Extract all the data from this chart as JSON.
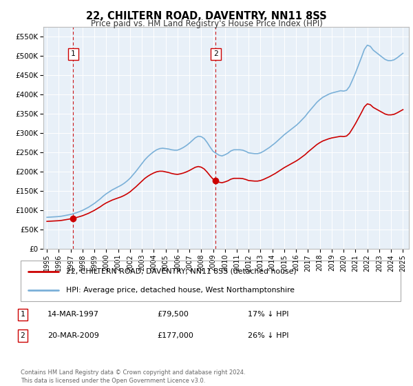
{
  "title": "22, CHILTERN ROAD, DAVENTRY, NN11 8SS",
  "subtitle": "Price paid vs. HM Land Registry's House Price Index (HPI)",
  "background_color": "#ffffff",
  "plot_bg_color": "#e8f0f8",
  "hpi_color": "#7ab0d8",
  "price_color": "#cc0000",
  "marker_color": "#cc0000",
  "dashed_line_color": "#cc0000",
  "ylim": [
    0,
    575000
  ],
  "yticks": [
    0,
    50000,
    100000,
    150000,
    200000,
    250000,
    300000,
    350000,
    400000,
    450000,
    500000,
    550000
  ],
  "ytick_labels": [
    "£0",
    "£50K",
    "£100K",
    "£150K",
    "£200K",
    "£250K",
    "£300K",
    "£350K",
    "£400K",
    "£450K",
    "£500K",
    "£550K"
  ],
  "xlim_start": 1994.7,
  "xlim_end": 2025.5,
  "xtick_years": [
    1995,
    1996,
    1997,
    1998,
    1999,
    2000,
    2001,
    2002,
    2003,
    2004,
    2005,
    2006,
    2007,
    2008,
    2009,
    2010,
    2011,
    2012,
    2013,
    2014,
    2015,
    2016,
    2017,
    2018,
    2019,
    2020,
    2021,
    2022,
    2023,
    2024,
    2025
  ],
  "sale1_x": 1997.21,
  "sale1_y": 79500,
  "sale1_label": "1",
  "sale2_x": 2009.22,
  "sale2_y": 177000,
  "sale2_label": "2",
  "legend_line1": "22, CHILTERN ROAD, DAVENTRY, NN11 8SS (detached house)",
  "legend_line2": "HPI: Average price, detached house, West Northamptonshire",
  "table_row1_num": "1",
  "table_row1_date": "14-MAR-1997",
  "table_row1_price": "£79,500",
  "table_row1_hpi": "17% ↓ HPI",
  "table_row2_num": "2",
  "table_row2_date": "20-MAR-2009",
  "table_row2_price": "£177,000",
  "table_row2_hpi": "26% ↓ HPI",
  "footer": "Contains HM Land Registry data © Crown copyright and database right 2024.\nThis data is licensed under the Open Government Licence v3.0.",
  "hpi_x": [
    1995.0,
    1995.25,
    1995.5,
    1995.75,
    1996.0,
    1996.25,
    1996.5,
    1996.75,
    1997.0,
    1997.25,
    1997.5,
    1997.75,
    1998.0,
    1998.25,
    1998.5,
    1998.75,
    1999.0,
    1999.25,
    1999.5,
    1999.75,
    2000.0,
    2000.25,
    2000.5,
    2000.75,
    2001.0,
    2001.25,
    2001.5,
    2001.75,
    2002.0,
    2002.25,
    2002.5,
    2002.75,
    2003.0,
    2003.25,
    2003.5,
    2003.75,
    2004.0,
    2004.25,
    2004.5,
    2004.75,
    2005.0,
    2005.25,
    2005.5,
    2005.75,
    2006.0,
    2006.25,
    2006.5,
    2006.75,
    2007.0,
    2007.25,
    2007.5,
    2007.75,
    2008.0,
    2008.25,
    2008.5,
    2008.75,
    2009.0,
    2009.25,
    2009.5,
    2009.75,
    2010.0,
    2010.25,
    2010.5,
    2010.75,
    2011.0,
    2011.25,
    2011.5,
    2011.75,
    2012.0,
    2012.25,
    2012.5,
    2012.75,
    2013.0,
    2013.25,
    2013.5,
    2013.75,
    2014.0,
    2014.25,
    2014.5,
    2014.75,
    2015.0,
    2015.25,
    2015.5,
    2015.75,
    2016.0,
    2016.25,
    2016.5,
    2016.75,
    2017.0,
    2017.25,
    2017.5,
    2017.75,
    2018.0,
    2018.25,
    2018.5,
    2018.75,
    2019.0,
    2019.25,
    2019.5,
    2019.75,
    2020.0,
    2020.25,
    2020.5,
    2020.75,
    2021.0,
    2021.25,
    2021.5,
    2021.75,
    2022.0,
    2022.25,
    2022.5,
    2022.75,
    2023.0,
    2023.25,
    2023.5,
    2023.75,
    2024.0,
    2024.25,
    2024.5,
    2024.75,
    2025.0
  ],
  "hpi_y": [
    82000,
    82500,
    83000,
    83500,
    84000,
    85000,
    86500,
    88000,
    89500,
    91500,
    94000,
    97000,
    100000,
    104000,
    108000,
    113000,
    118000,
    124000,
    130000,
    137000,
    143000,
    148000,
    153000,
    157000,
    161000,
    165000,
    170000,
    176000,
    183000,
    192000,
    201000,
    211000,
    221000,
    231000,
    239000,
    246000,
    252000,
    257000,
    260000,
    261000,
    260000,
    259000,
    257000,
    256000,
    256000,
    259000,
    263000,
    268000,
    274000,
    281000,
    288000,
    292000,
    291000,
    286000,
    276000,
    264000,
    253000,
    248000,
    243000,
    241000,
    244000,
    248000,
    254000,
    257000,
    257000,
    257000,
    256000,
    253000,
    249000,
    248000,
    247000,
    247000,
    249000,
    253000,
    258000,
    263000,
    269000,
    275000,
    282000,
    289000,
    296000,
    302000,
    308000,
    314000,
    320000,
    327000,
    335000,
    343000,
    353000,
    362000,
    371000,
    380000,
    387000,
    393000,
    397000,
    401000,
    404000,
    406000,
    408000,
    410000,
    409000,
    411000,
    421000,
    438000,
    456000,
    476000,
    496000,
    517000,
    528000,
    525000,
    515000,
    509000,
    503000,
    497000,
    491000,
    488000,
    488000,
    490000,
    495000,
    501000,
    507000
  ],
  "price_y_scale": 0.68
}
